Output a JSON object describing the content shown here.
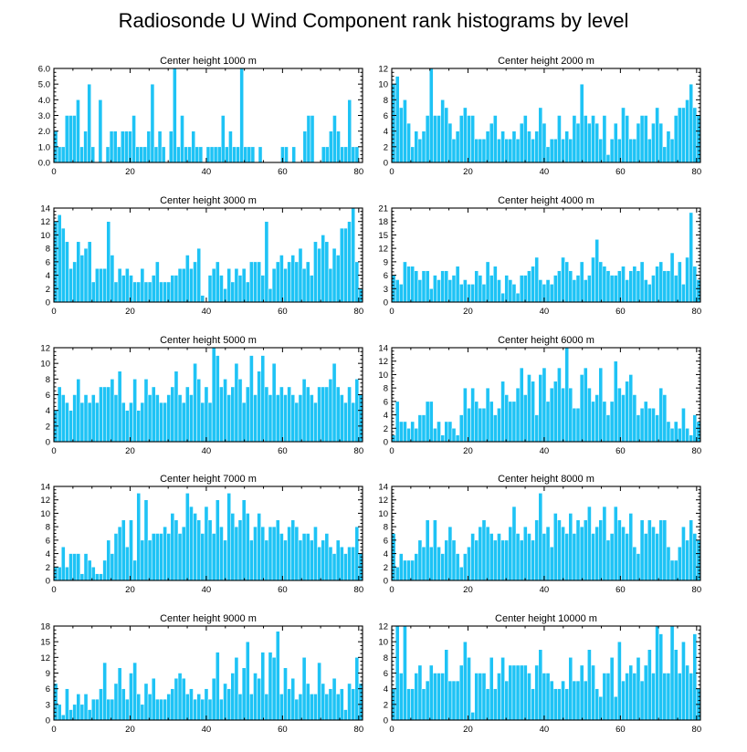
{
  "title": "Radiosonde U Wind Component rank histograms by level",
  "colors": {
    "bar": "#1ec3f5",
    "bar_edge": "#ffffff",
    "axis": "#000000"
  },
  "chart_data": [
    {
      "type": "bar",
      "title": "Center height 1000 m",
      "xlim": [
        0,
        81
      ],
      "xticks": [
        0,
        20,
        40,
        60,
        80
      ],
      "ylim": [
        0,
        6
      ],
      "yticks": [
        "0.0",
        "1.0",
        "2.0",
        "3.0",
        "4.0",
        "5.0",
        "6.0"
      ],
      "values": [
        2,
        1,
        1,
        3,
        3,
        3,
        4,
        1,
        2,
        5,
        1,
        0,
        4,
        0,
        1,
        2,
        2,
        1,
        2,
        2,
        2,
        3,
        1,
        1,
        1,
        2,
        5,
        1,
        2,
        1,
        0,
        2,
        6,
        1,
        3,
        1,
        1,
        2,
        1,
        1,
        0,
        1,
        1,
        1,
        1,
        3,
        1,
        2,
        1,
        1,
        6,
        1,
        1,
        1,
        0,
        1,
        0,
        0,
        0,
        0,
        0,
        1,
        1,
        0,
        1,
        0,
        0,
        2,
        3,
        3,
        0,
        0,
        1,
        1,
        2,
        3,
        2,
        1,
        1,
        4,
        1,
        1,
        0
      ]
    },
    {
      "type": "bar",
      "title": "Center height 2000 m",
      "xlim": [
        0,
        81
      ],
      "xticks": [
        0,
        20,
        40,
        60,
        80
      ],
      "ylim": [
        0,
        12
      ],
      "yticks": [
        "0",
        "2",
        "4",
        "6",
        "8",
        "10",
        "12"
      ],
      "values": [
        10,
        11,
        7,
        8,
        5,
        2,
        4,
        3,
        4,
        6,
        12,
        6,
        6,
        8,
        7,
        5,
        3,
        4,
        6,
        7,
        6,
        6,
        3,
        3,
        3,
        4,
        5,
        6,
        3,
        4,
        3,
        3,
        4,
        3,
        5,
        6,
        4,
        3,
        4,
        7,
        5,
        2,
        3,
        3,
        6,
        3,
        4,
        3,
        6,
        5,
        10,
        6,
        5,
        6,
        5,
        3,
        6,
        1,
        3,
        5,
        3,
        7,
        6,
        3,
        3,
        5,
        6,
        6,
        3,
        5,
        7,
        5,
        2,
        4,
        3,
        6,
        7,
        7,
        8,
        10,
        7,
        6
      ]
    },
    {
      "type": "bar",
      "title": "Center height 3000 m",
      "xlim": [
        0,
        81
      ],
      "xticks": [
        0,
        20,
        40,
        60,
        80
      ],
      "ylim": [
        0,
        14
      ],
      "yticks": [
        "0",
        "2",
        "4",
        "6",
        "8",
        "10",
        "12",
        "14"
      ],
      "values": [
        12,
        13,
        11,
        9,
        5,
        6,
        9,
        7,
        8,
        9,
        3,
        5,
        5,
        5,
        12,
        7,
        3,
        5,
        4,
        5,
        4,
        3,
        3,
        5,
        3,
        3,
        4,
        6,
        3,
        3,
        3,
        4,
        4,
        5,
        5,
        7,
        5,
        6,
        8,
        1,
        0,
        4,
        5,
        6,
        4,
        2,
        5,
        3,
        5,
        4,
        5,
        3,
        6,
        6,
        6,
        4,
        12,
        2,
        5,
        6,
        7,
        5,
        6,
        7,
        6,
        8,
        5,
        6,
        4,
        9,
        8,
        10,
        9,
        5,
        8,
        7,
        11,
        11,
        12,
        14,
        6,
        2
      ]
    },
    {
      "type": "bar",
      "title": "Center height 4000 m",
      "xlim": [
        0,
        81
      ],
      "xticks": [
        0,
        20,
        40,
        60,
        80
      ],
      "ylim": [
        0,
        21
      ],
      "yticks": [
        "0",
        "3",
        "6",
        "9",
        "12",
        "15",
        "18",
        "21"
      ],
      "values": [
        6,
        5,
        4,
        9,
        8,
        8,
        7,
        5,
        7,
        7,
        3,
        6,
        5,
        7,
        7,
        5,
        6,
        8,
        4,
        5,
        4,
        4,
        7,
        6,
        4,
        9,
        6,
        8,
        5,
        2,
        6,
        5,
        4,
        2,
        6,
        6,
        7,
        8,
        10,
        5,
        4,
        5,
        4,
        6,
        7,
        10,
        9,
        7,
        5,
        6,
        9,
        5,
        6,
        10,
        14,
        9,
        8,
        7,
        6,
        6,
        7,
        8,
        5,
        7,
        8,
        7,
        9,
        5,
        4,
        6,
        8,
        9,
        7,
        7,
        11,
        6,
        9,
        4,
        10,
        20,
        8,
        5
      ]
    },
    {
      "type": "bar",
      "title": "Center height 5000 m",
      "xlim": [
        0,
        81
      ],
      "xticks": [
        0,
        20,
        40,
        60,
        80
      ],
      "ylim": [
        0,
        12
      ],
      "yticks": [
        "0",
        "2",
        "4",
        "6",
        "8",
        "10",
        "12"
      ],
      "values": [
        4,
        7,
        6,
        5,
        4,
        6,
        8,
        5,
        6,
        5,
        6,
        5,
        7,
        7,
        7,
        8,
        6,
        9,
        5,
        4,
        5,
        8,
        4,
        5,
        8,
        6,
        7,
        6,
        5,
        5,
        6,
        7,
        9,
        6,
        5,
        7,
        6,
        10,
        8,
        5,
        7,
        5,
        12,
        11,
        7,
        8,
        6,
        7,
        10,
        8,
        5,
        7,
        11,
        6,
        9,
        11,
        7,
        6,
        10,
        6,
        7,
        6,
        7,
        6,
        5,
        6,
        8,
        7,
        6,
        5,
        7,
        7,
        7,
        8,
        10,
        7,
        6,
        5,
        7,
        5,
        8,
        6
      ]
    },
    {
      "type": "bar",
      "title": "Center height 6000 m",
      "xlim": [
        0,
        81
      ],
      "xticks": [
        0,
        20,
        40,
        60,
        80
      ],
      "ylim": [
        0,
        14
      ],
      "yticks": [
        "0",
        "2",
        "4",
        "6",
        "8",
        "10",
        "12",
        "14"
      ],
      "values": [
        1,
        6,
        3,
        3,
        2,
        3,
        2,
        4,
        4,
        6,
        6,
        2,
        3,
        1,
        3,
        3,
        2,
        1,
        4,
        8,
        5,
        8,
        6,
        5,
        5,
        8,
        6,
        4,
        5,
        9,
        7,
        6,
        6,
        8,
        11,
        7,
        10,
        9,
        4,
        10,
        11,
        6,
        8,
        9,
        11,
        8,
        14,
        8,
        5,
        5,
        10,
        11,
        8,
        6,
        7,
        11,
        6,
        4,
        6,
        12,
        8,
        7,
        9,
        10,
        7,
        4,
        5,
        6,
        5,
        5,
        4,
        8,
        7,
        3,
        2,
        3,
        2,
        5,
        2,
        1,
        4,
        3
      ]
    },
    {
      "type": "bar",
      "title": "Center height 7000 m",
      "xlim": [
        0,
        81
      ],
      "xticks": [
        0,
        20,
        40,
        60,
        80
      ],
      "ylim": [
        0,
        14
      ],
      "yticks": [
        "0",
        "2",
        "4",
        "6",
        "8",
        "10",
        "12",
        "14"
      ],
      "values": [
        2,
        2,
        5,
        2,
        4,
        4,
        4,
        1,
        4,
        3,
        2,
        1,
        1,
        3,
        6,
        4,
        7,
        8,
        9,
        5,
        9,
        3,
        13,
        6,
        12,
        6,
        7,
        7,
        7,
        8,
        7,
        10,
        9,
        7,
        8,
        13,
        11,
        10,
        9,
        7,
        11,
        9,
        7,
        12,
        8,
        6,
        13,
        10,
        8,
        9,
        12,
        10,
        6,
        8,
        10,
        8,
        6,
        8,
        8,
        9,
        7,
        6,
        8,
        9,
        8,
        6,
        7,
        7,
        6,
        8,
        5,
        6,
        7,
        5,
        4,
        6,
        5,
        4,
        5,
        5,
        8,
        4
      ]
    },
    {
      "type": "bar",
      "title": "Center height 8000 m",
      "xlim": [
        0,
        81
      ],
      "xticks": [
        0,
        20,
        40,
        60,
        80
      ],
      "ylim": [
        0,
        14
      ],
      "yticks": [
        "0",
        "2",
        "4",
        "6",
        "8",
        "10",
        "12",
        "14"
      ],
      "values": [
        7,
        2,
        4,
        3,
        3,
        3,
        4,
        6,
        5,
        9,
        5,
        9,
        5,
        4,
        6,
        8,
        6,
        4,
        2,
        4,
        5,
        7,
        6,
        8,
        9,
        8,
        7,
        6,
        7,
        6,
        6,
        8,
        11,
        7,
        6,
        8,
        7,
        6,
        9,
        13,
        7,
        8,
        5,
        10,
        9,
        8,
        7,
        10,
        7,
        9,
        8,
        9,
        11,
        7,
        8,
        9,
        11,
        6,
        7,
        11,
        9,
        8,
        7,
        10,
        5,
        4,
        9,
        7,
        9,
        8,
        7,
        9,
        9,
        5,
        3,
        3,
        5,
        8,
        6,
        9,
        7,
        6
      ]
    },
    {
      "type": "bar",
      "title": "Center height 9000 m",
      "xlim": [
        0,
        81
      ],
      "xticks": [
        0,
        20,
        40,
        60,
        80
      ],
      "ylim": [
        0,
        18
      ],
      "yticks": [
        "0",
        "3",
        "6",
        "9",
        "12",
        "15",
        "18"
      ],
      "values": [
        7,
        3,
        1,
        6,
        2,
        3,
        5,
        3,
        5,
        2,
        4,
        4,
        6,
        11,
        4,
        4,
        7,
        10,
        6,
        4,
        9,
        11,
        5,
        3,
        7,
        5,
        8,
        4,
        4,
        4,
        5,
        6,
        8,
        9,
        8,
        5,
        6,
        4,
        5,
        4,
        6,
        4,
        8,
        13,
        4,
        7,
        6,
        9,
        12,
        5,
        10,
        15,
        5,
        9,
        8,
        13,
        5,
        13,
        12,
        17,
        5,
        10,
        6,
        8,
        4,
        5,
        12,
        7,
        5,
        5,
        11,
        7,
        5,
        6,
        8,
        5,
        6,
        2,
        7,
        6,
        12,
        7
      ]
    },
    {
      "type": "bar",
      "title": "Center height 10000 m",
      "xlim": [
        0,
        81
      ],
      "xticks": [
        0,
        20,
        40,
        60,
        80
      ],
      "ylim": [
        0,
        12
      ],
      "yticks": [
        "0",
        "2",
        "4",
        "6",
        "8",
        "10",
        "12"
      ],
      "values": [
        4,
        12,
        6,
        12,
        4,
        4,
        6,
        7,
        4,
        5,
        7,
        6,
        6,
        6,
        9,
        5,
        5,
        5,
        7,
        10,
        8,
        1,
        6,
        6,
        6,
        4,
        8,
        4,
        6,
        8,
        5,
        7,
        7,
        7,
        7,
        7,
        6,
        4,
        7,
        9,
        6,
        6,
        5,
        4,
        4,
        5,
        4,
        8,
        5,
        5,
        7,
        5,
        9,
        7,
        4,
        3,
        6,
        6,
        8,
        3,
        10,
        5,
        6,
        7,
        6,
        8,
        5,
        7,
        9,
        6,
        12,
        11,
        6,
        6,
        12,
        9,
        6,
        10,
        7,
        6,
        11,
        4
      ]
    }
  ]
}
